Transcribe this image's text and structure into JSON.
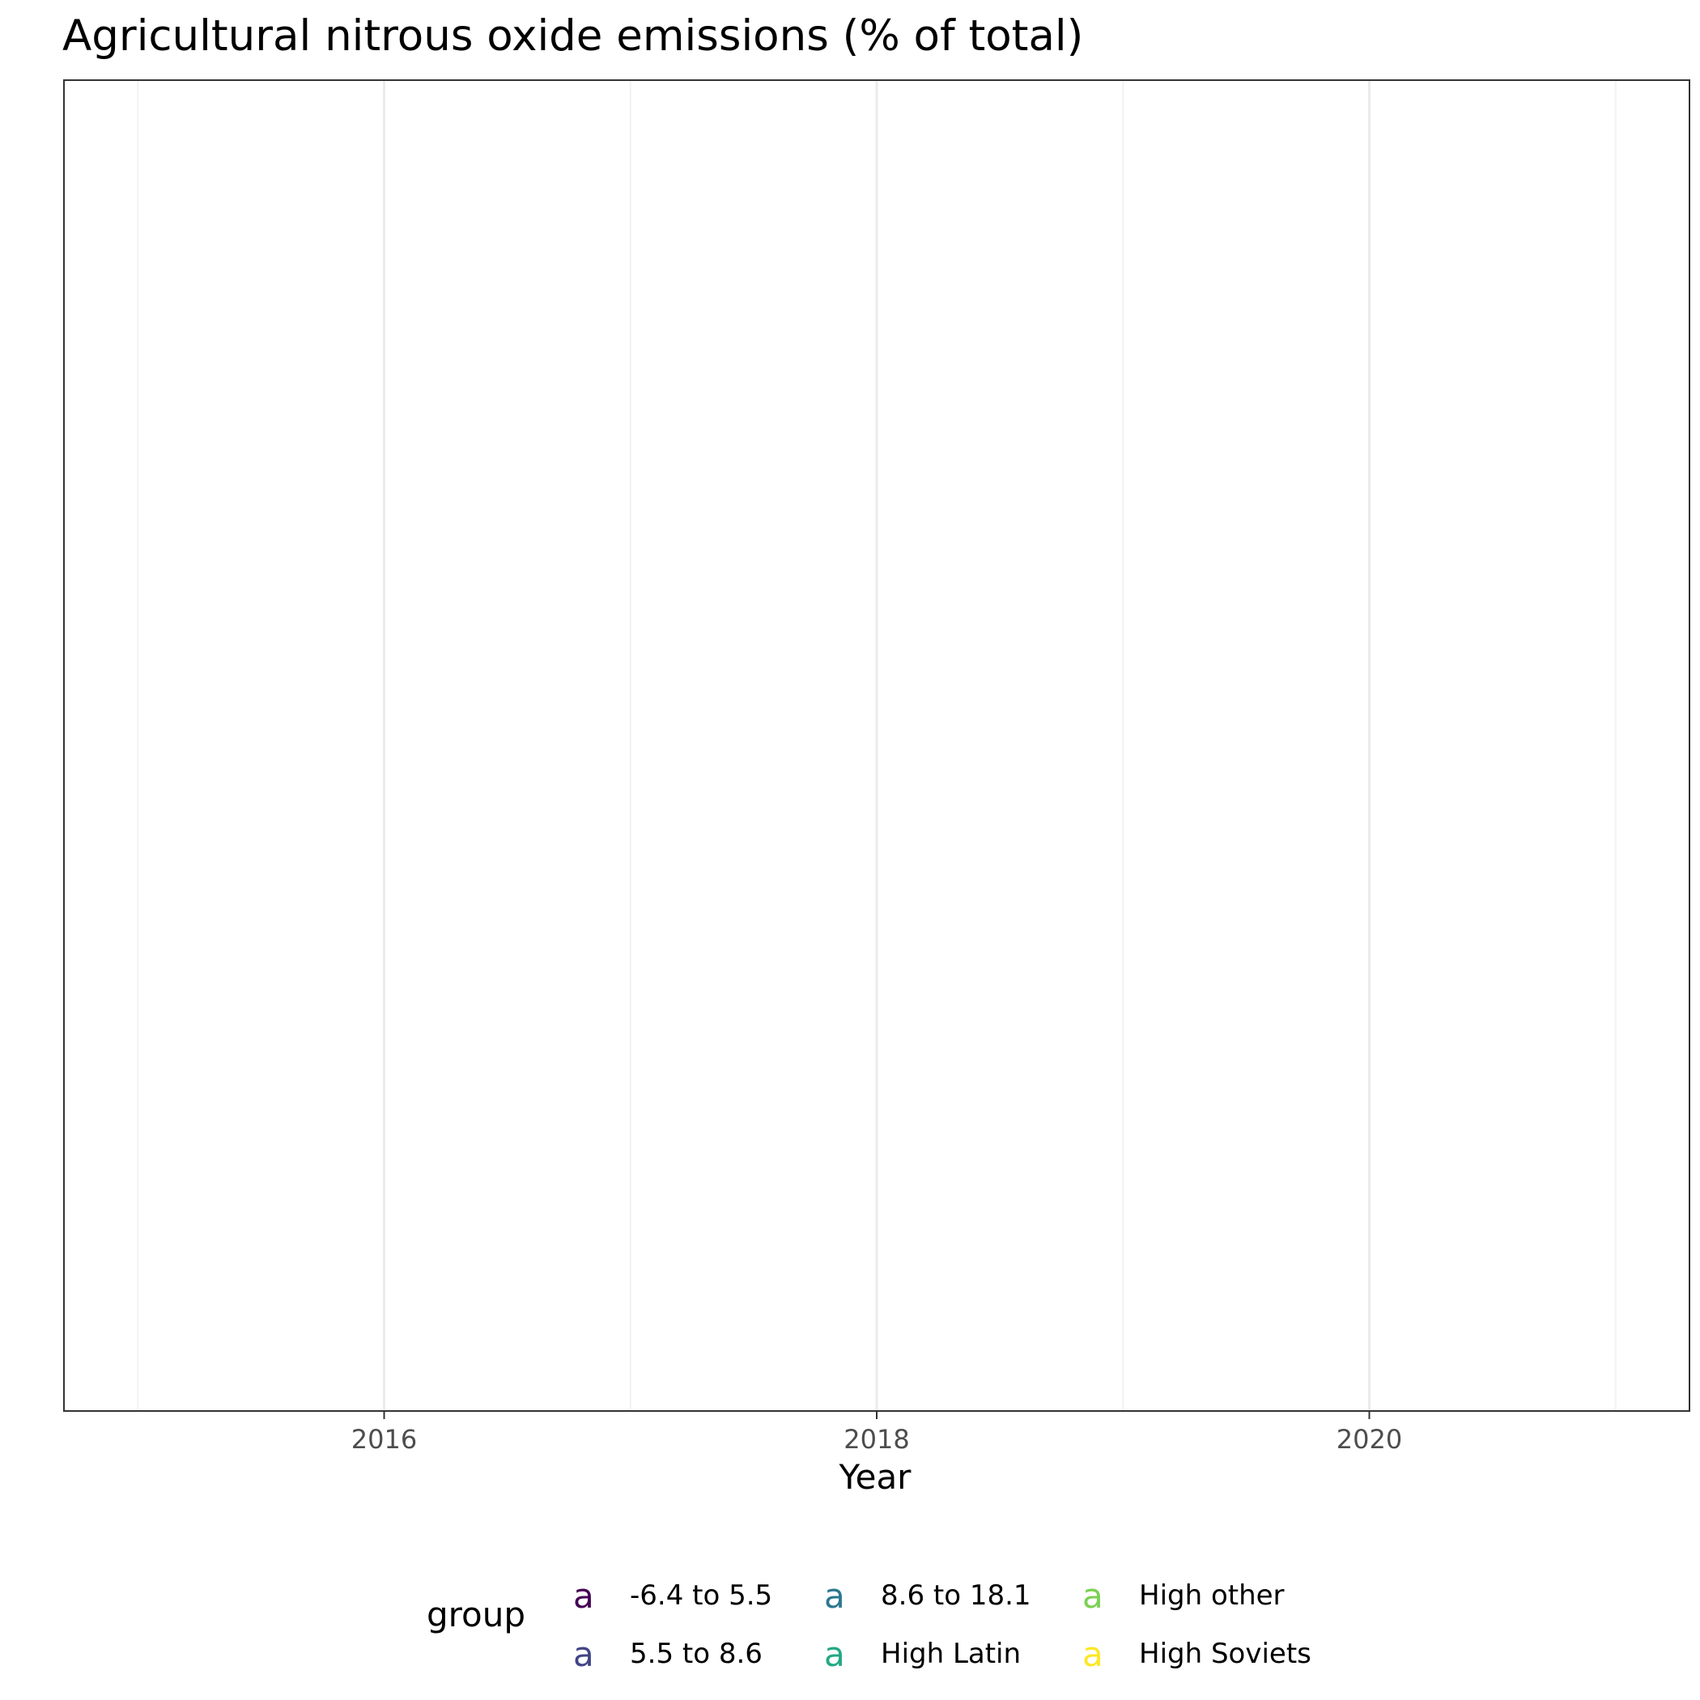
{
  "chart_data": {
    "type": "line",
    "title": "Agricultural nitrous oxide emissions (% of total)",
    "xlabel": "Year",
    "ylabel": "",
    "xlim": [
      2014.7,
      2021.3
    ],
    "major_ticks": [
      2016,
      2018,
      2020
    ],
    "minor_ticks": [
      2015,
      2017,
      2019,
      2021
    ],
    "tick_labels": [
      "2016",
      "2018",
      "2020"
    ],
    "grid": "vertical",
    "legend": {
      "title": "group",
      "placement": "bottom",
      "key_glyph": "a",
      "entries": [
        {
          "label": "-6.4 to 5.5",
          "color": "#440154"
        },
        {
          "label": "5.5 to 8.6",
          "color": "#414487"
        },
        {
          "label": "8.6 to 18.1",
          "color": "#2A788E"
        },
        {
          "label": "High Latin",
          "color": "#22A884"
        },
        {
          "label": "High other",
          "color": "#7AD151"
        },
        {
          "label": "High Soviets",
          "color": "#FDE725"
        }
      ]
    },
    "series": [
      {
        "name": "-6.4 to 5.5",
        "values": []
      },
      {
        "name": "5.5 to 8.6",
        "values": []
      },
      {
        "name": "8.6 to 18.1",
        "values": []
      },
      {
        "name": "High Latin",
        "values": []
      },
      {
        "name": "High other",
        "values": []
      },
      {
        "name": "High Soviets",
        "values": []
      }
    ]
  },
  "colors": {
    "panel_border": "#333333",
    "major_grid": "#ebebeb",
    "minor_grid": "#f2f2f2",
    "tick": "#333333"
  }
}
